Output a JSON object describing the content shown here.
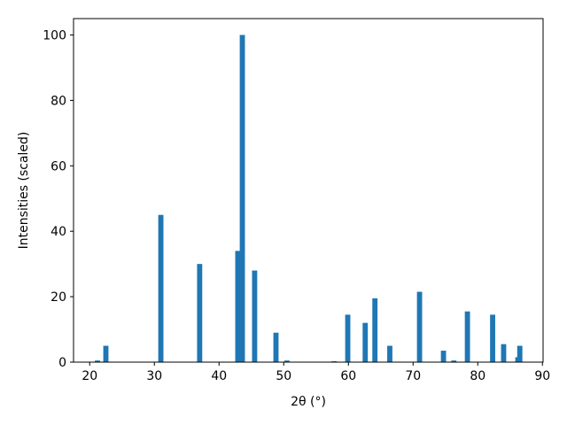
{
  "chart_data": {
    "type": "bar",
    "x_label": "2θ (°)",
    "y_label": "Intensities (scaled)",
    "x": [
      21.2,
      22.5,
      31.0,
      37.0,
      42.9,
      43.6,
      45.5,
      48.8,
      50.5,
      57.8,
      59.9,
      62.6,
      64.1,
      66.4,
      71.0,
      74.7,
      76.3,
      78.4,
      82.3,
      84.0,
      86.2,
      86.5
    ],
    "values": [
      0.5,
      5,
      45,
      30,
      34,
      100,
      28,
      9,
      0.5,
      0.3,
      14.5,
      12,
      19.5,
      5,
      21.5,
      3.5,
      0.5,
      15.5,
      14.5,
      5.5,
      1.5,
      5
    ],
    "color": "#1f77b4",
    "xlim": [
      17.5,
      90.1
    ],
    "xticks": [
      20,
      30,
      40,
      50,
      60,
      70,
      80,
      90
    ],
    "ylim": [
      0,
      105
    ],
    "yticks": [
      0,
      20,
      40,
      60,
      80,
      100
    ],
    "grid": false
  }
}
